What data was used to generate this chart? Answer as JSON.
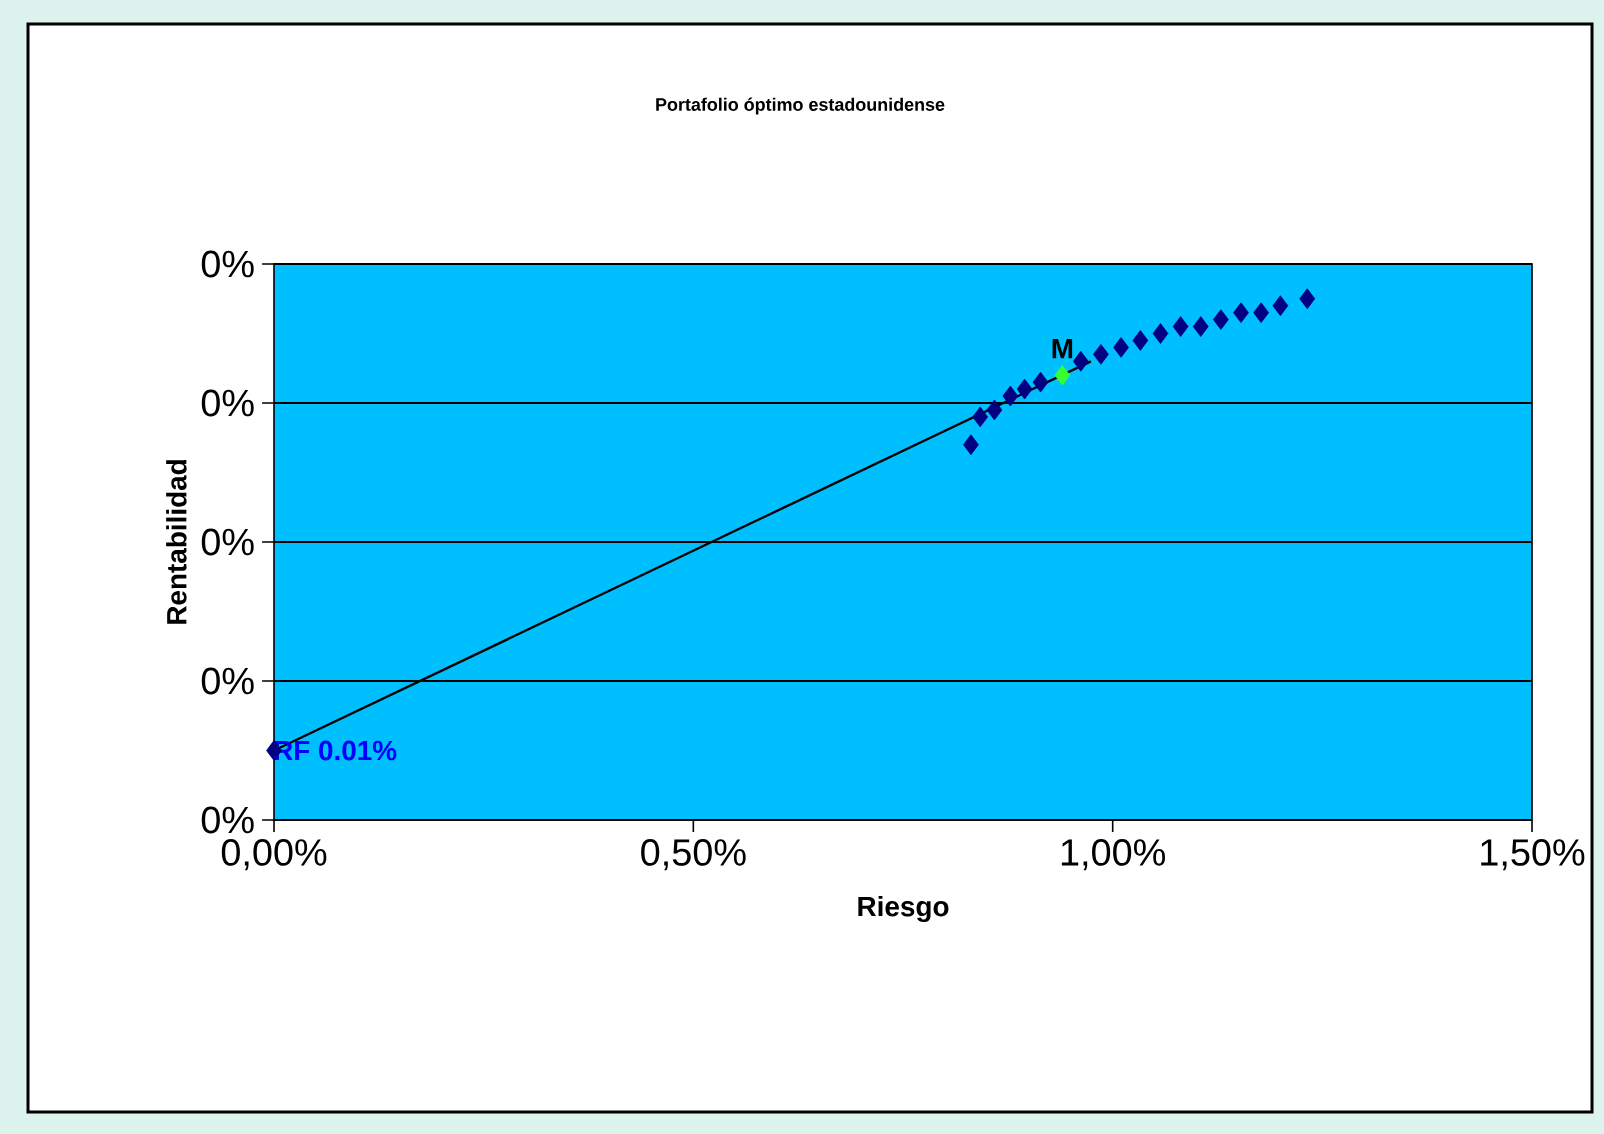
{
  "chart_data": {
    "type": "scatter",
    "title": "Portafolio óptimo estadounidense",
    "xlabel": "Riesgo",
    "ylabel": "Rentabilidad",
    "series": [
      {
        "type": "line",
        "color": "#000000",
        "marker": "none",
        "x": [
          0,
          0.974
        ],
        "values": [
          0.01,
          0.066
        ]
      },
      {
        "color": "#000080",
        "marker": "diamond",
        "x": [
          0.831,
          0.842,
          0.859,
          0.878,
          0.895,
          0.914,
          0.962,
          0.986,
          1.01,
          1.033,
          1.057,
          1.081,
          1.105,
          1.129,
          1.153,
          1.177,
          1.2,
          1.232
        ],
        "values": [
          0.054,
          0.058,
          0.059,
          0.061,
          0.062,
          0.063,
          0.066,
          0.067,
          0.068,
          0.069,
          0.07,
          0.071,
          0.071,
          0.072,
          0.073,
          0.073,
          0.074,
          0.075
        ]
      },
      {
        "color": "#000080",
        "marker": "diamond",
        "x": [
          0
        ],
        "values": [
          0.01
        ]
      },
      {
        "color": "#33ff33",
        "marker": "diamond",
        "x": [
          0.94
        ],
        "values": [
          0.064
        ]
      }
    ],
    "annotations": [
      {
        "text": "RF 0.01%",
        "x": 0,
        "y": 0.01
      },
      {
        "text": "M",
        "x": 0.94,
        "y": 0.064
      }
    ],
    "xlim": [
      0,
      1.5
    ],
    "ylim": [
      0,
      0.08
    ],
    "xticks": [
      {
        "value": 0,
        "label": "0,00%"
      },
      {
        "value": 0.5,
        "label": "0,50%"
      },
      {
        "value": 1,
        "label": "1,00%"
      },
      {
        "value": 1.5,
        "label": "1,50%"
      }
    ],
    "yticks": [
      {
        "value": 0,
        "label": "0%"
      },
      {
        "value": 0.02,
        "label": "0%"
      },
      {
        "value": 0.04,
        "label": "0%"
      },
      {
        "value": 0.06,
        "label": "0%"
      },
      {
        "value": 0.08,
        "label": "0%"
      }
    ],
    "grid": "y"
  }
}
